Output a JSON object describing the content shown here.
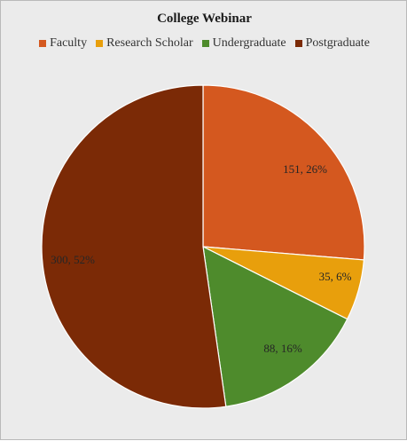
{
  "chart_data": {
    "type": "pie",
    "title": "College Webinar",
    "legend_position": "top",
    "slices": [
      {
        "label": "Faculty",
        "value": 151,
        "percent": 26,
        "data_label": "151, 26%",
        "color": "#d4581f"
      },
      {
        "label": "Research Scholar",
        "value": 35,
        "percent": 6,
        "data_label": "35, 6%",
        "color": "#e89f0c"
      },
      {
        "label": "Undergraduate",
        "value": 88,
        "percent": 16,
        "data_label": "88, 16%",
        "color": "#4e8b2c"
      },
      {
        "label": "Postgraduate",
        "value": 300,
        "percent": 52,
        "data_label": "300, 52%",
        "color": "#7b2a06"
      }
    ]
  }
}
